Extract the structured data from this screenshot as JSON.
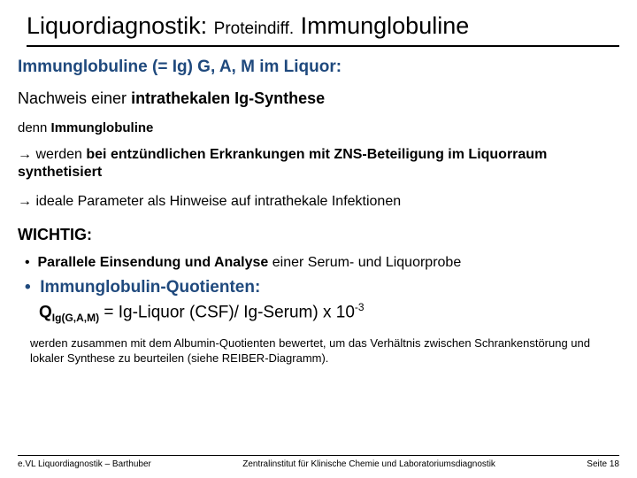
{
  "title_part1": "Liquordiagnostik: ",
  "title_small": "Proteindiff.",
  "title_part2": " Immunglobuline",
  "subtitle": "Immunglobuline (= Ig) G, A, M im Liquor:",
  "nachweis_pre": "Nachweis einer ",
  "nachweis_bold": "intrathekalen Ig-Synthese",
  "denn_pre": "denn ",
  "denn_bold": "Immunglobuline",
  "arrow1_pre": "→ werden ",
  "arrow1_bold": "bei entzündlichen Erkrankungen mit ZNS-Beteiligung im Liquorraum synthetisiert",
  "arrow2": "→ ideale Parameter als Hinweise auf intrathekale Infektionen",
  "wichtig": "WICHTIG:",
  "bullet1_bold": "Parallele Einsendung und Analyse ",
  "bullet1_rest": "einer Serum- und Liquorprobe",
  "bullet2": "Immunglobulin-Quotienten:",
  "formula_q": "Q",
  "formula_sub": "Ig(G,A,M)",
  "formula_mid": " = Ig-Liquor (CSF)/ Ig-Serum) x 10",
  "formula_sup": "-3",
  "note": "werden zusammen mit dem Albumin-Quotienten bewertet, um das Verhältnis zwischen Schrankenstörung und lokaler Synthese zu beurteilen (siehe REIBER-Diagramm).",
  "footer_left": "e.VL Liquordiagnostik – Barthuber",
  "footer_center": "Zentralinstitut für Klinische Chemie und Laboratoriumsdiagnostik",
  "footer_right": "Seite 18",
  "colors": {
    "accent": "#1f497d",
    "text": "#000000",
    "background": "#ffffff"
  }
}
